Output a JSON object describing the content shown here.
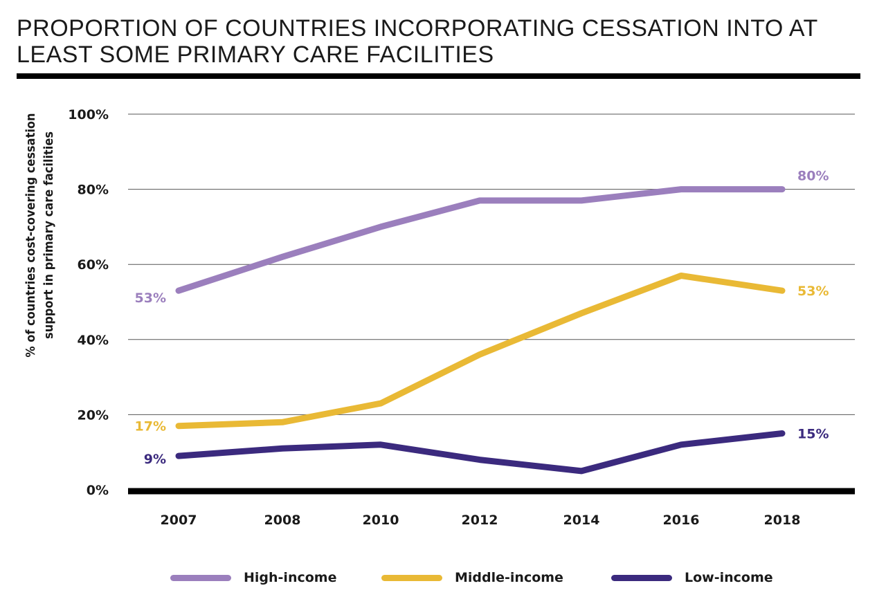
{
  "title": "PROPORTION OF COUNTRIES INCORPORATING CESSATION INTO AT LEAST SOME PRIMARY CARE FACILITIES",
  "colors": {
    "high": "#9b7fbd",
    "middle": "#e9b935",
    "low": "#3b2a7e",
    "axis": "#000000",
    "grid": "#555555"
  },
  "chart_data": {
    "type": "line",
    "title": "PROPORTION OF COUNTRIES INCORPORATING CESSATION INTO AT LEAST SOME PRIMARY CARE FACILITIES",
    "ylabel_line1": "% of countries cost-covering cessation",
    "ylabel_line2": "support in primary care facilities",
    "xlabel": "",
    "categories": [
      "2007",
      "2008",
      "2010",
      "2012",
      "2014",
      "2016",
      "2018"
    ],
    "yticks": [
      "0%",
      "20%",
      "40%",
      "60%",
      "80%",
      "100%"
    ],
    "ylim": [
      0,
      100
    ],
    "grid": true,
    "legend_position": "bottom",
    "series": [
      {
        "name": "High-income",
        "color": "#9b7fbd",
        "values": [
          53,
          62,
          70,
          77,
          77,
          80,
          80
        ],
        "start_label": "53%",
        "end_label": "80%"
      },
      {
        "name": "Middle-income",
        "color": "#e9b935",
        "values": [
          17,
          18,
          23,
          36,
          47,
          57,
          53
        ],
        "start_label": "17%",
        "end_label": "53%"
      },
      {
        "name": "Low-income",
        "color": "#3b2a7e",
        "values": [
          9,
          11,
          12,
          8,
          5,
          12,
          15
        ],
        "start_label": "9%",
        "end_label": "15%"
      }
    ]
  }
}
